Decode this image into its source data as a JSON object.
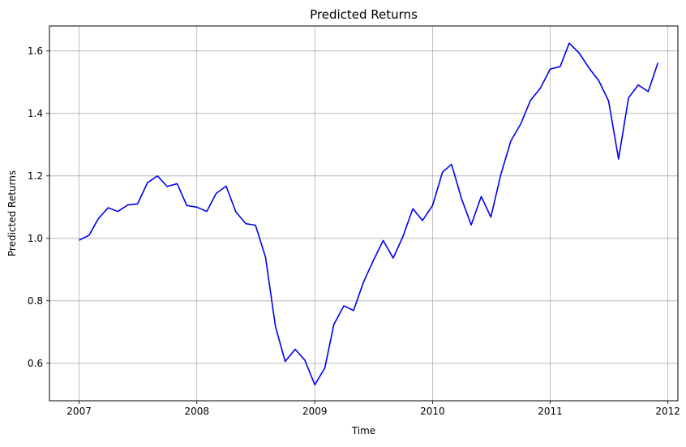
{
  "chart_data": {
    "type": "line",
    "title": "Predicted Returns",
    "xlabel": "Time",
    "ylabel": "Predicted Returns",
    "x_ticks": [
      "2007",
      "2008",
      "2009",
      "2010",
      "2011",
      "2012"
    ],
    "y_ticks": [
      "0.6",
      "0.8",
      "1.0",
      "1.2",
      "1.4",
      "1.6"
    ],
    "xlim": [
      "2006-10-01",
      "2012-02-01"
    ],
    "ylim": [
      0.48,
      1.68
    ],
    "grid": true,
    "legend": "none",
    "line_color": "#0000ee",
    "grid_color": "#b0b0b0",
    "series": [
      {
        "x": [
          "2007-01-01",
          "2007-02-01",
          "2007-03-01",
          "2007-04-01",
          "2007-05-01",
          "2007-06-01",
          "2007-07-01",
          "2007-08-01",
          "2007-09-01",
          "2007-10-01",
          "2007-11-01",
          "2007-12-01",
          "2008-01-01",
          "2008-02-01",
          "2008-03-01",
          "2008-04-01",
          "2008-05-01",
          "2008-06-01",
          "2008-07-01",
          "2008-08-01",
          "2008-09-01",
          "2008-10-01",
          "2008-11-01",
          "2008-12-01",
          "2009-01-01",
          "2009-02-01",
          "2009-03-01",
          "2009-04-01",
          "2009-05-01",
          "2009-06-01",
          "2009-07-01",
          "2009-08-01",
          "2009-09-01",
          "2009-10-01",
          "2009-11-01",
          "2009-12-01",
          "2010-01-01",
          "2010-02-01",
          "2010-03-01",
          "2010-04-01",
          "2010-05-01",
          "2010-06-01",
          "2010-07-01",
          "2010-08-01",
          "2010-09-01",
          "2010-10-01",
          "2010-11-01",
          "2010-12-01",
          "2011-01-01",
          "2011-02-01",
          "2011-03-01",
          "2011-04-01",
          "2011-05-01",
          "2011-06-01",
          "2011-07-01",
          "2011-08-01",
          "2011-09-01",
          "2011-10-01",
          "2011-11-01",
          "2011-12-01"
        ],
        "values": [
          0.994,
          1.01,
          1.062,
          1.098,
          1.086,
          1.107,
          1.11,
          1.178,
          1.2,
          1.166,
          1.175,
          1.105,
          1.1,
          1.086,
          1.144,
          1.167,
          1.085,
          1.047,
          1.042,
          0.94,
          0.717,
          0.606,
          0.645,
          0.61,
          0.531,
          0.585,
          0.724,
          0.784,
          0.769,
          0.86,
          0.928,
          0.993,
          0.937,
          1.005,
          1.095,
          1.057,
          1.105,
          1.212,
          1.237,
          1.127,
          1.043,
          1.134,
          1.068,
          1.205,
          1.312,
          1.365,
          1.442,
          1.48,
          1.542,
          1.55,
          1.625,
          1.593,
          1.546,
          1.504,
          1.44,
          1.254,
          1.45,
          1.491,
          1.47,
          1.562
        ]
      }
    ]
  }
}
